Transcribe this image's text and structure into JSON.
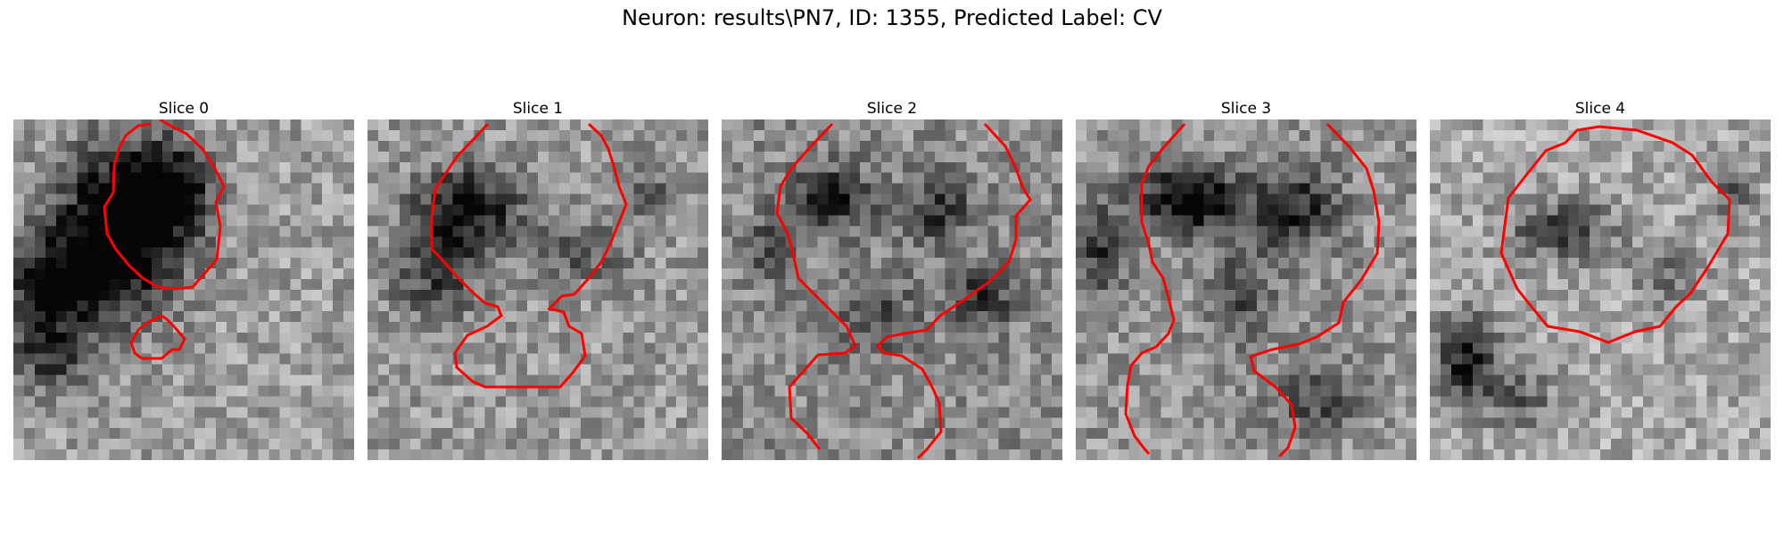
{
  "figure": {
    "suptitle": "Neuron: results\\PN7, ID: 1355, Predicted Label: CV"
  },
  "contour_color": "#ff0000",
  "panels": [
    {
      "title": "Slice 0"
    },
    {
      "title": "Slice 1"
    },
    {
      "title": "Slice 2"
    },
    {
      "title": "Slice 3"
    },
    {
      "title": "Slice 4"
    }
  ]
}
